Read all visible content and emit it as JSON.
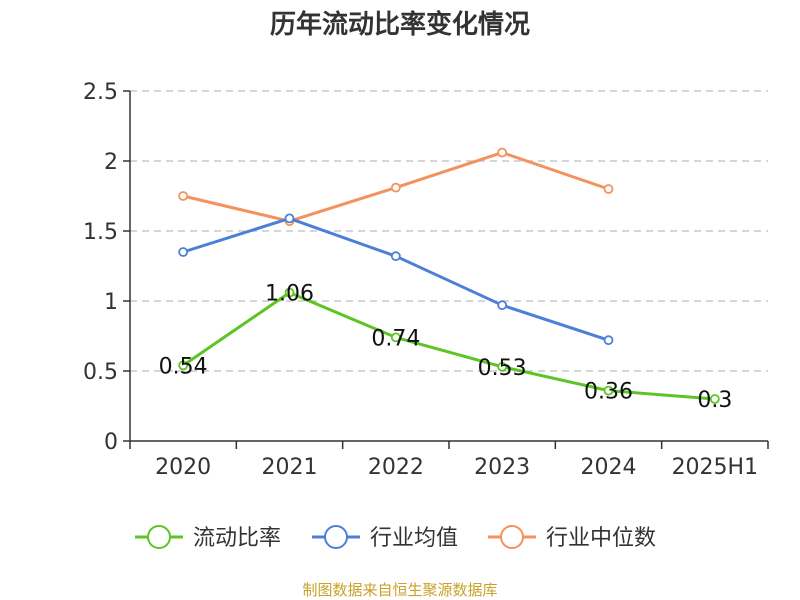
{
  "chart_data": {
    "type": "line",
    "title": "历年流动比率变化情况",
    "categories": [
      "2020",
      "2021",
      "2022",
      "2023",
      "2024",
      "2025H1"
    ],
    "ylim": [
      0,
      2.5
    ],
    "yticks": [
      "0",
      "0.5",
      "1",
      "1.5",
      "2",
      "2.5"
    ],
    "grid": true,
    "legend_position": "bottom",
    "series": [
      {
        "name": "流动比率",
        "color": "#5cc524",
        "values": [
          0.54,
          1.06,
          0.74,
          0.53,
          0.36,
          0.3
        ],
        "labels": [
          "0.54",
          "1.06",
          "0.74",
          "0.53",
          "0.36",
          "0.3"
        ]
      },
      {
        "name": "行业均值",
        "color": "#4e7fd8",
        "values": [
          1.35,
          1.59,
          1.32,
          0.97,
          0.72,
          null
        ]
      },
      {
        "name": "行业中位数",
        "color": "#f4915c",
        "values": [
          1.75,
          1.57,
          1.81,
          2.06,
          1.8,
          null
        ]
      }
    ],
    "source": "制图数据来自恒生聚源数据库",
    "source_color": "#c8a227"
  }
}
